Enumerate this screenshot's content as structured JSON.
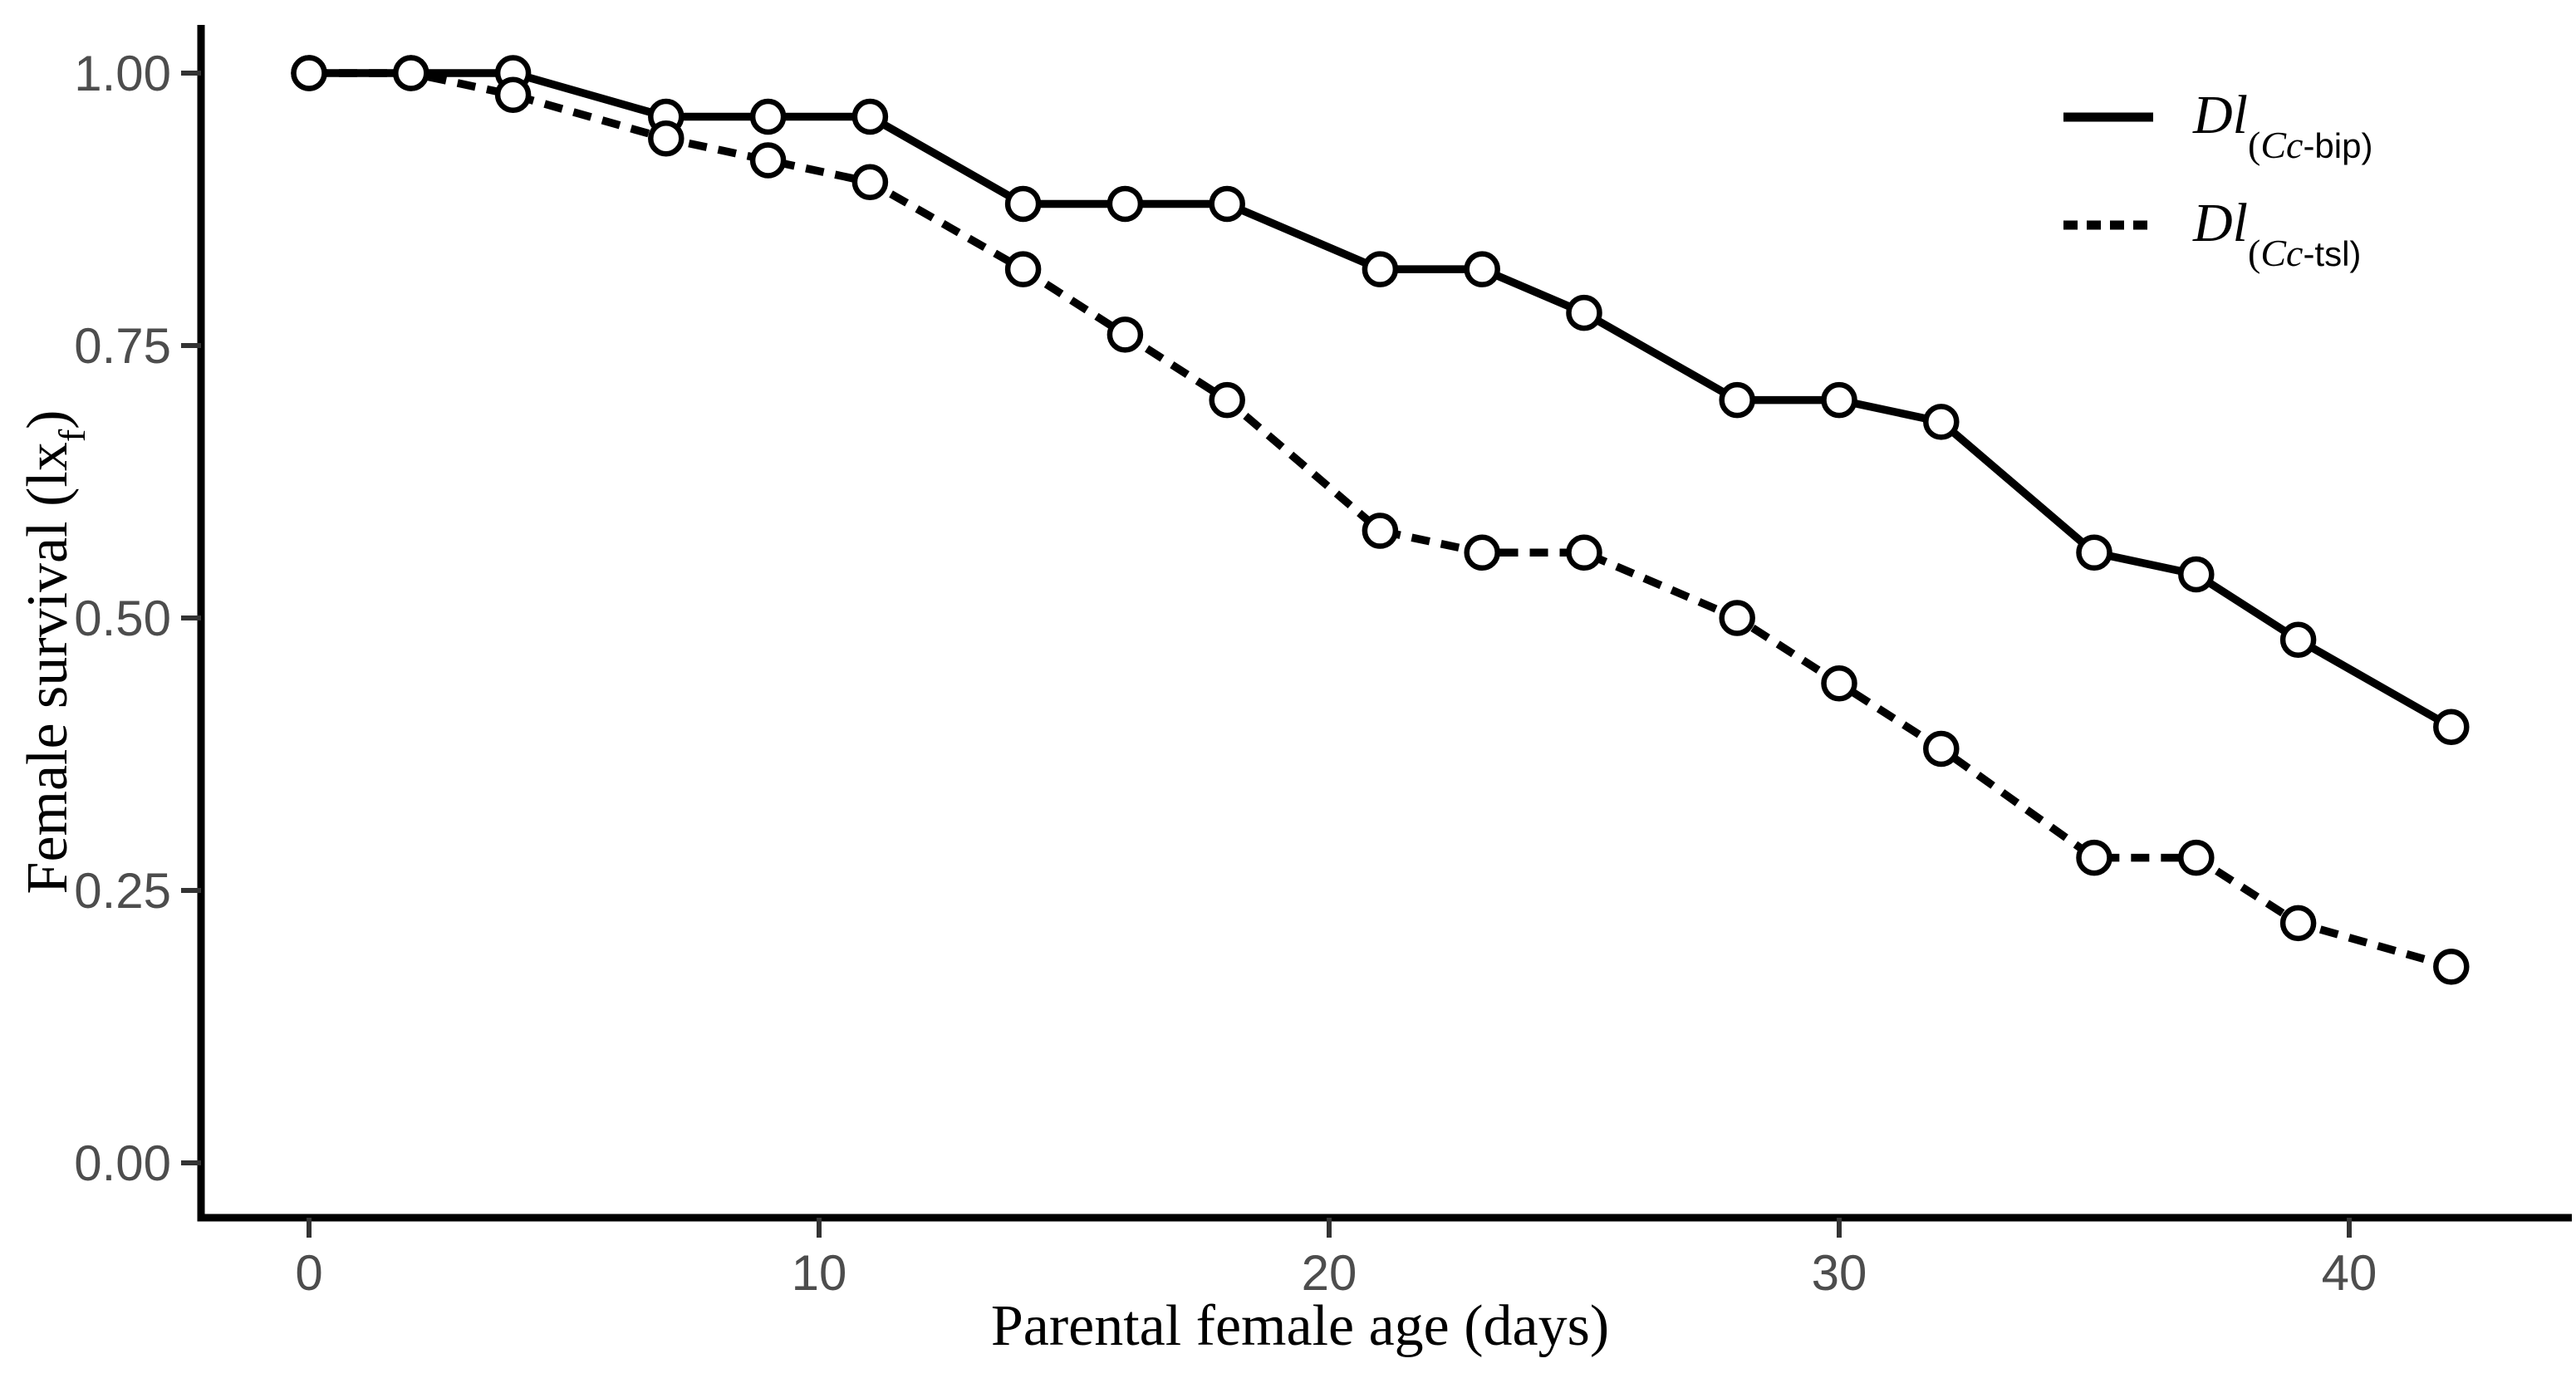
{
  "figure": {
    "y_axis": {
      "title_main": "Female survival (lx",
      "title_sub": "f",
      "title_close": ")",
      "ticks": [
        {
          "value": 1.0,
          "label": "1.00"
        },
        {
          "value": 0.75,
          "label": "0.75"
        },
        {
          "value": 0.5,
          "label": "0.50"
        },
        {
          "value": 0.25,
          "label": "0.25"
        },
        {
          "value": 0.0,
          "label": "0.00"
        }
      ]
    },
    "x_axis": {
      "title": "Parental female age (days)",
      "ticks": [
        {
          "value": 0,
          "label": "0"
        },
        {
          "value": 10,
          "label": "10"
        },
        {
          "value": 20,
          "label": "20"
        },
        {
          "value": 30,
          "label": "30"
        },
        {
          "value": 40,
          "label": "40"
        }
      ]
    },
    "legend": {
      "entries": [
        {
          "style": "solid",
          "main": "Dl",
          "sub_open": "(",
          "sub_italic": "Cc",
          "sub_rest": "-bip)"
        },
        {
          "style": "dashed",
          "main": "Dl",
          "sub_open": "(",
          "sub_italic": "Cc",
          "sub_rest": "-tsl)"
        }
      ]
    },
    "colors": {
      "line": "#000000",
      "axis": "#000000",
      "tick_mark": "#333333",
      "tick_label": "#4d4d4d",
      "marker_fill": "#ffffff",
      "background": "#ffffff"
    }
  },
  "chart_data": {
    "type": "line",
    "title": "",
    "xlabel": "Parental female age (days)",
    "ylabel": "Female survival (lxf)",
    "x": [
      0,
      2,
      4,
      7,
      9,
      11,
      14,
      16,
      18,
      21,
      23,
      25,
      28,
      30,
      32,
      35,
      37,
      39,
      42
    ],
    "series": [
      {
        "name": "Dl(Cc-bip)",
        "style": "solid",
        "marker": "open-circle",
        "values": [
          1.0,
          1.0,
          1.0,
          0.96,
          0.96,
          0.96,
          0.88,
          0.88,
          0.88,
          0.82,
          0.82,
          0.78,
          0.7,
          0.7,
          0.68,
          0.56,
          0.54,
          0.48,
          0.4
        ]
      },
      {
        "name": "Dl(Cc-tsl)",
        "style": "dashed",
        "marker": "open-circle",
        "values": [
          1.0,
          1.0,
          0.98,
          0.94,
          0.92,
          0.9,
          0.82,
          0.76,
          0.7,
          0.58,
          0.56,
          0.56,
          0.5,
          0.44,
          0.38,
          0.28,
          0.28,
          0.22,
          0.18
        ]
      }
    ],
    "x_ticks": [
      0,
      10,
      20,
      30,
      40
    ],
    "y_ticks": [
      0.0,
      0.25,
      0.5,
      0.75,
      1.0
    ],
    "xlim": [
      -2,
      44
    ],
    "ylim": [
      -0.05,
      1.05
    ],
    "grid": false,
    "legend_position": "top-right"
  }
}
